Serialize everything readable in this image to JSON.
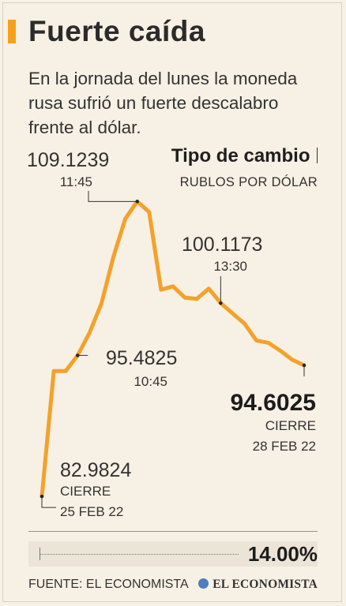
{
  "colors": {
    "accent": "#f6a01a",
    "line": "#f4a12b",
    "background": "#f7f0e4"
  },
  "header": {
    "title": "Fuerte caída",
    "subtitle": "En la jornada del lunes la moneda rusa sufrió un fuerte descalabro frente al dólar."
  },
  "chart_data": {
    "type": "line",
    "title": "Tipo de cambio",
    "unit": "RUBLOS POR DÓLAR",
    "xlabel": "",
    "ylabel": "",
    "grid": false,
    "legend": "none",
    "ylim": [
      82.5,
      109.5
    ],
    "series": [
      {
        "name": "",
        "values": [
          82.9824,
          94.1,
          94.1,
          95.4825,
          97.5,
          100.1,
          104.2,
          107.6,
          109.1239,
          108.2,
          101.3,
          101.6,
          100.6,
          100.5,
          101.4,
          100.1173,
          99.2,
          98.3,
          96.8,
          96.6,
          95.9,
          95.1,
          94.6025
        ]
      }
    ],
    "annotations": [
      {
        "value": "82.9824",
        "label": "CIERRE",
        "date": "25 FEB 22"
      },
      {
        "value": "95.4825",
        "time": "10:45"
      },
      {
        "value": "109.1239",
        "time": "11:45"
      },
      {
        "value": "100.1173",
        "time": "13:30"
      },
      {
        "value": "94.6025",
        "label": "CIERRE",
        "date": "28 FEB 22"
      }
    ]
  },
  "change": {
    "value": "14.00%"
  },
  "footer": {
    "source": "FUENTE: EL ECONOMISTA",
    "brand": "EL ECONOMISTA"
  }
}
